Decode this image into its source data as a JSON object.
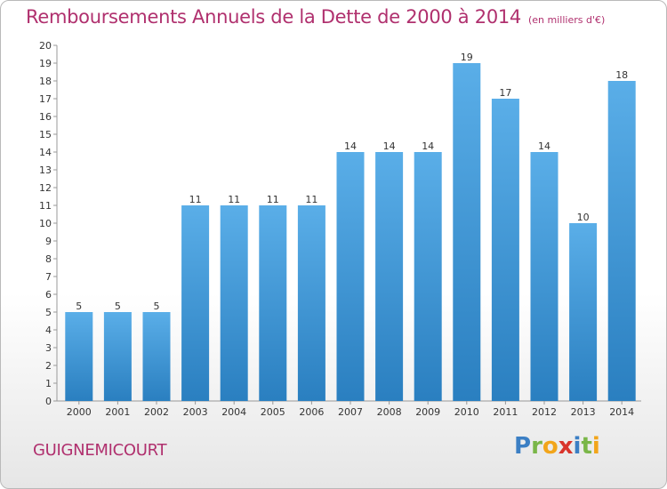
{
  "title": {
    "main": "Remboursements Annuels de la Dette de 2000 à 2014",
    "unit": "(en milliers d'€)"
  },
  "city": "GUIGNEMICOURT",
  "logo": {
    "letters": [
      "P",
      "r",
      "o",
      "x",
      "i",
      "t",
      "i"
    ],
    "colors": [
      "#3b7fc4",
      "#7ab648",
      "#f2a51a",
      "#d9342b",
      "#3b7fc4",
      "#7ab648",
      "#f2a51a"
    ]
  },
  "chart_data": {
    "type": "bar",
    "title": "Remboursements Annuels de la Dette de 2000 à 2014",
    "categories": [
      "2000",
      "2001",
      "2002",
      "2003",
      "2004",
      "2005",
      "2006",
      "2007",
      "2008",
      "2009",
      "2010",
      "2011",
      "2012",
      "2013",
      "2014"
    ],
    "values": [
      5,
      5,
      5,
      11,
      11,
      11,
      11,
      14,
      14,
      14,
      19,
      17,
      14,
      10,
      18
    ],
    "ylim": [
      0,
      20
    ],
    "yticks": [
      0,
      1,
      2,
      3,
      4,
      5,
      6,
      7,
      8,
      9,
      10,
      11,
      12,
      13,
      14,
      15,
      16,
      17,
      18,
      19,
      20
    ],
    "grid": false,
    "colors": {
      "bar_light": "#5aaee8",
      "bar_dark": "#2a7fc0",
      "axis": "#999999"
    }
  }
}
